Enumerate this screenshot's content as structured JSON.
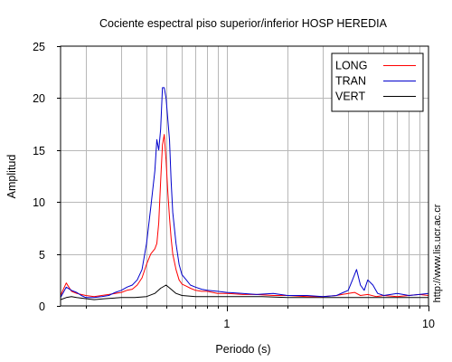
{
  "chart_data": {
    "type": "line",
    "title": "Cociente espectral piso superior/inferior  HOSP HEREDIA",
    "xlabel": "Periodo (s)",
    "ylabel": "Amplitud",
    "xscale": "log",
    "xlim": [
      0.15,
      10
    ],
    "ylim": [
      0,
      25
    ],
    "yticks": [
      0,
      5,
      10,
      15,
      20,
      25
    ],
    "xtick_labels": [
      {
        "value": 1,
        "label": "1"
      },
      {
        "value": 10,
        "label": "10"
      }
    ],
    "grid": true,
    "legend_position": "top-right",
    "side_label": "http://www.lis.ucr.ac.cr",
    "series": [
      {
        "name": "LONG",
        "color": "#ff0000",
        "x": [
          0.15,
          0.16,
          0.17,
          0.18,
          0.19,
          0.2,
          0.22,
          0.24,
          0.26,
          0.28,
          0.3,
          0.32,
          0.34,
          0.36,
          0.38,
          0.4,
          0.42,
          0.44,
          0.45,
          0.46,
          0.47,
          0.48,
          0.49,
          0.5,
          0.51,
          0.52,
          0.53,
          0.54,
          0.56,
          0.58,
          0.6,
          0.63,
          0.66,
          0.7,
          0.75,
          0.8,
          0.9,
          1,
          1.2,
          1.4,
          1.7,
          2,
          2.5,
          3,
          3.5,
          4,
          4.3,
          4.6,
          5,
          5.5,
          6,
          7,
          8,
          9,
          10
        ],
        "y": [
          1,
          2.2,
          1.4,
          1.2,
          1.1,
          1.0,
          0.9,
          1.0,
          1.1,
          1.2,
          1.3,
          1.5,
          1.6,
          2.0,
          2.7,
          4.0,
          5.0,
          5.5,
          6,
          8,
          12,
          15.5,
          16.5,
          14,
          11,
          8.5,
          6.5,
          5,
          3.5,
          2.5,
          2.1,
          1.9,
          1.7,
          1.5,
          1.4,
          1.4,
          1.2,
          1.2,
          1.1,
          1.1,
          1.0,
          1.0,
          0.9,
          0.9,
          1.0,
          1.2,
          1.3,
          1.0,
          1.1,
          0.9,
          1.0,
          0.9,
          1.0,
          1.1,
          1.0
        ]
      },
      {
        "name": "TRAN",
        "color": "#0000cc",
        "x": [
          0.15,
          0.16,
          0.17,
          0.18,
          0.19,
          0.2,
          0.22,
          0.24,
          0.26,
          0.28,
          0.3,
          0.32,
          0.34,
          0.36,
          0.38,
          0.4,
          0.42,
          0.44,
          0.45,
          0.46,
          0.47,
          0.48,
          0.49,
          0.5,
          0.51,
          0.52,
          0.53,
          0.54,
          0.56,
          0.58,
          0.6,
          0.63,
          0.66,
          0.7,
          0.75,
          0.8,
          0.9,
          1,
          1.2,
          1.4,
          1.7,
          2,
          2.5,
          3,
          3.5,
          4,
          4.2,
          4.4,
          4.6,
          4.8,
          5,
          5.3,
          5.6,
          6,
          7,
          8,
          9,
          10
        ],
        "y": [
          0.8,
          1.8,
          1.5,
          1.3,
          1.0,
          0.8,
          0.8,
          0.9,
          1.0,
          1.3,
          1.5,
          1.8,
          2.0,
          2.5,
          3.5,
          6.0,
          9.5,
          13,
          16,
          15,
          17,
          21,
          21,
          20,
          18,
          16,
          12,
          9,
          6,
          4,
          3,
          2.5,
          2.0,
          1.8,
          1.6,
          1.5,
          1.4,
          1.3,
          1.2,
          1.1,
          1.2,
          1.0,
          1.0,
          0.9,
          1.0,
          1.5,
          2.5,
          3.5,
          2.0,
          1.5,
          2.5,
          2.0,
          1.2,
          1.0,
          1.2,
          1.0,
          1.1,
          1.2
        ]
      },
      {
        "name": "VERT",
        "color": "#000000",
        "x": [
          0.15,
          0.16,
          0.17,
          0.18,
          0.2,
          0.22,
          0.25,
          0.3,
          0.35,
          0.4,
          0.44,
          0.47,
          0.5,
          0.53,
          0.56,
          0.6,
          0.7,
          0.8,
          1,
          1.5,
          2,
          3,
          4,
          5,
          6,
          8,
          10
        ],
        "y": [
          0.6,
          0.8,
          0.9,
          0.8,
          0.7,
          0.6,
          0.7,
          0.8,
          0.8,
          0.9,
          1.2,
          1.7,
          2.0,
          1.6,
          1.2,
          1.0,
          0.9,
          0.9,
          0.9,
          0.9,
          0.8,
          0.8,
          0.8,
          0.8,
          0.8,
          0.8,
          0.8
        ]
      }
    ]
  }
}
